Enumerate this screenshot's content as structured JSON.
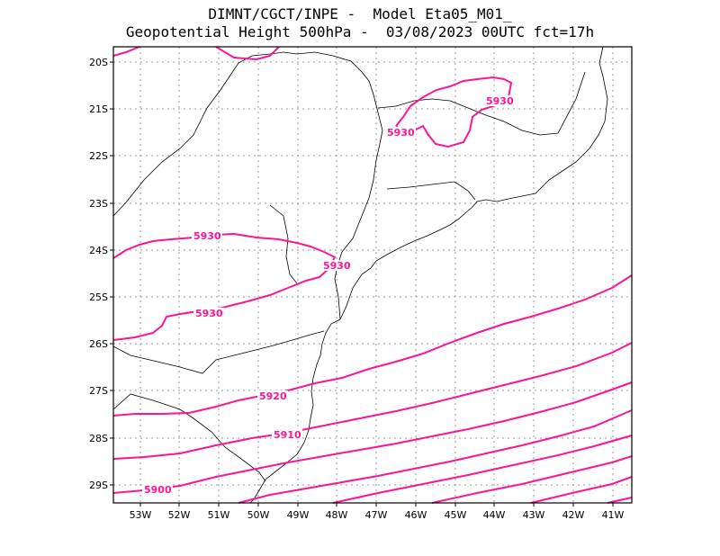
{
  "title_line1": "DIMNT/CGCT/INPE -  Model Eta05_M01_",
  "title_line2": "Geopotential Height 500hPa -  03/08/2023 00UTC fct=17h",
  "colors": {
    "contour": "#ff1493",
    "coast": "#000000",
    "grid": "#999999"
  },
  "lat_labels": [
    "20S",
    "21S",
    "22S",
    "23S",
    "24S",
    "25S",
    "26S",
    "27S",
    "28S",
    "29S"
  ],
  "lon_labels": [
    "53W",
    "52W",
    "51W",
    "50W",
    "49W",
    "48W",
    "47W",
    "46W",
    "45W",
    "44W",
    "43W",
    "42W",
    "41W"
  ],
  "contour_labels": [
    "5930",
    "5930",
    "5930",
    "5930",
    "5930",
    "5920",
    "5910",
    "5900"
  ],
  "chart_data": {
    "type": "map",
    "variable": "Geopotential Height 500hPa",
    "contour_interval_gpm": 10,
    "contour_levels": [
      5900,
      5910,
      5920,
      5930
    ],
    "lat_range": [
      "29S",
      "20S"
    ],
    "lon_range": [
      "53W",
      "41W"
    ],
    "grid": true
  }
}
